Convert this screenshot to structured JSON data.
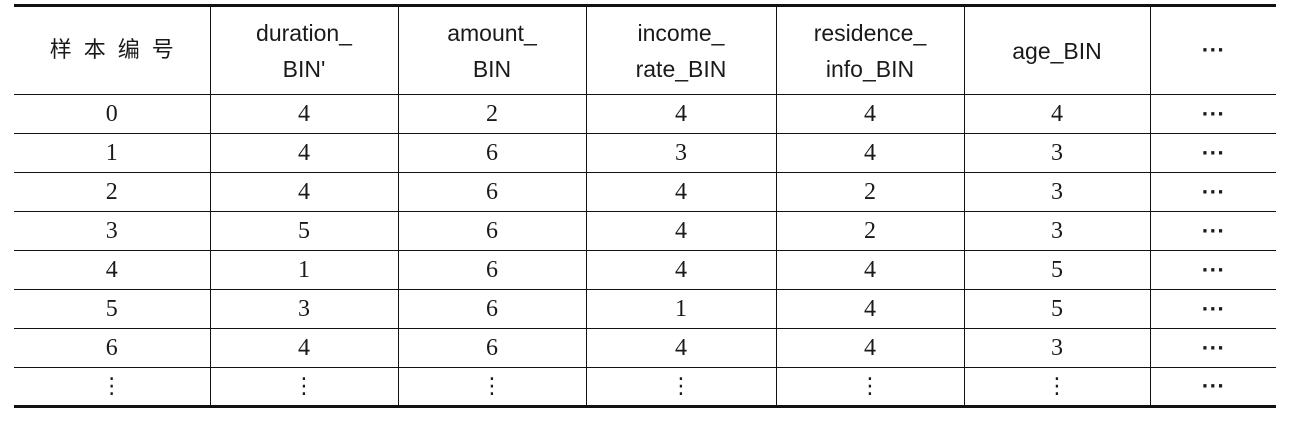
{
  "table": {
    "headers": [
      [
        "样本编号"
      ],
      [
        "duration_",
        "BIN'"
      ],
      [
        "amount_",
        "BIN"
      ],
      [
        "income_",
        "rate_BIN"
      ],
      [
        "residence_",
        "info_BIN"
      ],
      [
        "age_BIN"
      ],
      [
        "···"
      ]
    ],
    "rows": [
      [
        "0",
        "4",
        "2",
        "4",
        "4",
        "4",
        "···"
      ],
      [
        "1",
        "4",
        "6",
        "3",
        "4",
        "3",
        "···"
      ],
      [
        "2",
        "4",
        "6",
        "4",
        "2",
        "3",
        "···"
      ],
      [
        "3",
        "5",
        "6",
        "4",
        "2",
        "3",
        "···"
      ],
      [
        "4",
        "1",
        "6",
        "4",
        "4",
        "5",
        "···"
      ],
      [
        "5",
        "3",
        "6",
        "1",
        "4",
        "5",
        "···"
      ],
      [
        "6",
        "4",
        "6",
        "4",
        "4",
        "3",
        "···"
      ],
      [
        "⋮",
        "⋮",
        "⋮",
        "⋮",
        "⋮",
        "⋮",
        "···"
      ]
    ]
  }
}
